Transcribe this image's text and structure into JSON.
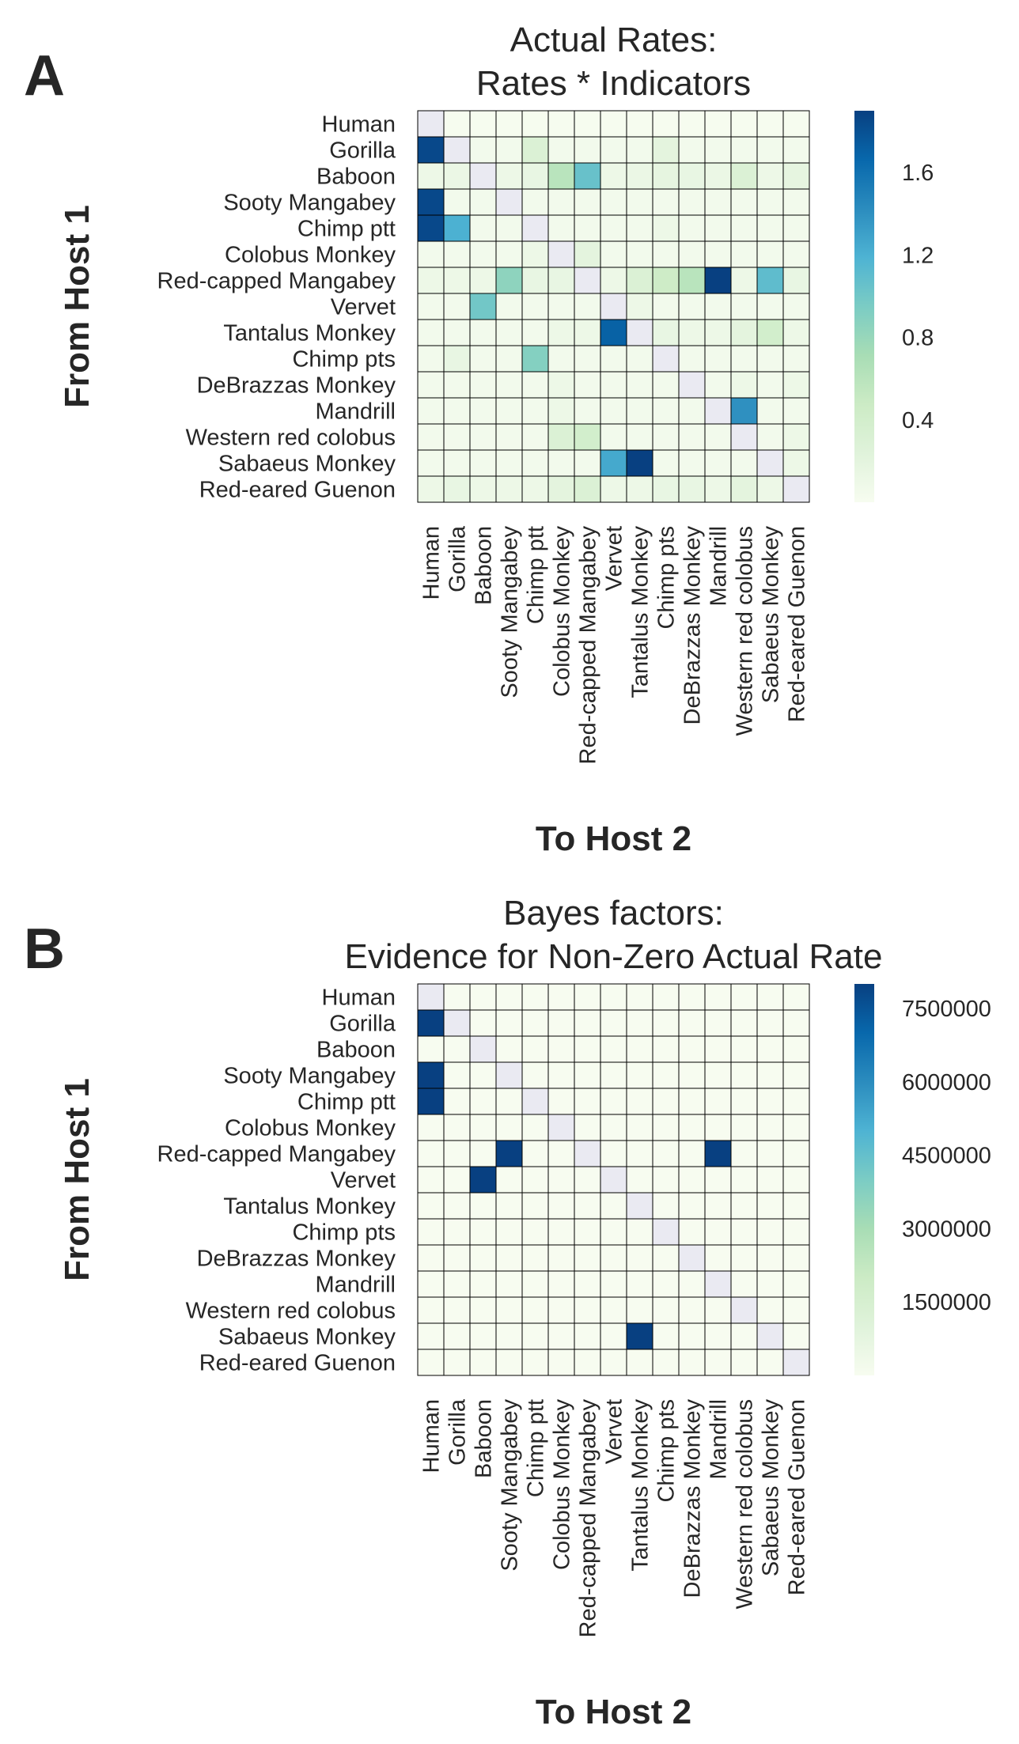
{
  "hosts": [
    "Human",
    "Gorilla",
    "Baboon",
    "Sooty Mangabey",
    "Chimp ptt",
    "Colobus Monkey",
    "Red-capped Mangabey",
    "Vervet",
    "Tantalus Monkey",
    "Chimp pts",
    "DeBrazzas Monkey",
    "Mandrill",
    "Western red colobus",
    "Sabaeus Monkey",
    "Red-eared Guenon"
  ],
  "chart_data": [
    {
      "panel": "A",
      "type": "heatmap",
      "title": "Actual Rates:",
      "subtitle": "Rates * Indicators",
      "xlabel": "To Host 2",
      "ylabel": "From Host 1",
      "colormap": "GnBu",
      "colorbar": {
        "range": [
          0,
          1.9
        ],
        "ticks": [
          0.4,
          0.8,
          1.2,
          1.6
        ],
        "tick_labels": [
          "0.4",
          "0.8",
          "1.2",
          "1.6"
        ]
      },
      "diagonal": "masked",
      "values": [
        [
          null,
          0.01,
          0.01,
          0.01,
          0.01,
          0.01,
          0.01,
          0.01,
          0.01,
          0.01,
          0.01,
          0.01,
          0.01,
          0.01,
          0.01
        ],
        [
          1.85,
          null,
          0.05,
          0.05,
          0.3,
          0.05,
          0.05,
          0.05,
          0.05,
          0.2,
          0.05,
          0.05,
          0.05,
          0.05,
          0.05
        ],
        [
          0.1,
          0.12,
          null,
          0.1,
          0.15,
          0.6,
          1.05,
          0.1,
          0.12,
          0.18,
          0.15,
          0.12,
          0.3,
          0.1,
          0.18
        ],
        [
          1.85,
          0.05,
          0.05,
          null,
          0.05,
          0.05,
          0.05,
          0.05,
          0.05,
          0.05,
          0.05,
          0.05,
          0.05,
          0.05,
          0.05
        ],
        [
          1.85,
          1.2,
          0.05,
          0.05,
          null,
          0.05,
          0.05,
          0.05,
          0.05,
          0.1,
          0.05,
          0.05,
          0.05,
          0.05,
          0.05
        ],
        [
          0.05,
          0.05,
          0.05,
          0.05,
          0.1,
          null,
          0.2,
          0.05,
          0.05,
          0.05,
          0.05,
          0.05,
          0.05,
          0.05,
          0.05
        ],
        [
          0.1,
          0.1,
          0.1,
          0.85,
          0.15,
          0.15,
          null,
          0.1,
          0.3,
          0.45,
          0.6,
          1.9,
          0.1,
          1.1,
          0.15
        ],
        [
          0.05,
          0.05,
          1.0,
          0.05,
          0.05,
          0.05,
          0.05,
          null,
          0.1,
          0.05,
          0.05,
          0.05,
          0.05,
          0.05,
          0.05
        ],
        [
          0.05,
          0.05,
          0.05,
          0.05,
          0.05,
          0.1,
          0.1,
          1.7,
          null,
          0.15,
          0.1,
          0.1,
          0.2,
          0.4,
          0.1
        ],
        [
          0.05,
          0.15,
          0.05,
          0.05,
          0.9,
          0.05,
          0.05,
          0.05,
          0.05,
          null,
          0.05,
          0.05,
          0.05,
          0.05,
          0.05
        ],
        [
          0.05,
          0.05,
          0.05,
          0.05,
          0.05,
          0.1,
          0.05,
          0.05,
          0.05,
          0.05,
          null,
          0.05,
          0.1,
          0.05,
          0.1
        ],
        [
          0.05,
          0.05,
          0.05,
          0.05,
          0.05,
          0.1,
          0.05,
          0.05,
          0.05,
          0.05,
          0.05,
          null,
          1.4,
          0.05,
          0.05
        ],
        [
          0.05,
          0.05,
          0.05,
          0.05,
          0.05,
          0.3,
          0.4,
          0.05,
          0.05,
          0.05,
          0.05,
          0.05,
          null,
          0.05,
          0.1
        ],
        [
          0.05,
          0.05,
          0.05,
          0.05,
          0.05,
          0.05,
          0.05,
          1.25,
          1.9,
          0.05,
          0.05,
          0.05,
          0.05,
          null,
          0.1
        ],
        [
          0.1,
          0.15,
          0.1,
          0.1,
          0.1,
          0.2,
          0.3,
          0.1,
          0.1,
          0.15,
          0.15,
          0.1,
          0.2,
          0.1,
          null
        ]
      ]
    },
    {
      "panel": "B",
      "type": "heatmap",
      "title": "Bayes factors:",
      "subtitle": "Evidence for Non-Zero Actual Rate",
      "xlabel": "To Host 2",
      "ylabel": "From Host 1",
      "colormap": "GnBu",
      "colorbar": {
        "range": [
          0,
          8000000
        ],
        "ticks": [
          1500000,
          3000000,
          4500000,
          6000000,
          7500000
        ],
        "tick_labels": [
          "1500000",
          "3000000",
          "4500000",
          "6000000",
          "7500000"
        ]
      },
      "diagonal": "masked",
      "values": [
        [
          null,
          0,
          0,
          0,
          0,
          0,
          0,
          0,
          0,
          0,
          0,
          0,
          0,
          0,
          0
        ],
        [
          8000000,
          null,
          0,
          0,
          0,
          0,
          0,
          0,
          0,
          0,
          0,
          0,
          0,
          0,
          0
        ],
        [
          0,
          0,
          null,
          0,
          0,
          0,
          0,
          0,
          0,
          0,
          0,
          0,
          0,
          0,
          0
        ],
        [
          8000000,
          0,
          0,
          null,
          0,
          0,
          0,
          0,
          0,
          0,
          0,
          0,
          0,
          0,
          0
        ],
        [
          8000000,
          0,
          0,
          0,
          null,
          0,
          0,
          0,
          0,
          0,
          0,
          0,
          0,
          0,
          0
        ],
        [
          0,
          0,
          0,
          0,
          0,
          null,
          0,
          0,
          0,
          0,
          0,
          0,
          0,
          0,
          0
        ],
        [
          0,
          0,
          0,
          8000000,
          0,
          0,
          null,
          0,
          0,
          0,
          0,
          8000000,
          0,
          0,
          0
        ],
        [
          0,
          0,
          8000000,
          0,
          0,
          0,
          0,
          null,
          0,
          0,
          0,
          0,
          0,
          0,
          0
        ],
        [
          0,
          0,
          0,
          0,
          0,
          0,
          0,
          0,
          null,
          0,
          0,
          0,
          0,
          0,
          0
        ],
        [
          0,
          0,
          0,
          0,
          0,
          0,
          0,
          0,
          0,
          null,
          0,
          0,
          0,
          0,
          0
        ],
        [
          0,
          0,
          0,
          0,
          0,
          0,
          0,
          0,
          0,
          0,
          null,
          0,
          0,
          0,
          0
        ],
        [
          0,
          0,
          0,
          0,
          0,
          0,
          0,
          0,
          0,
          0,
          0,
          null,
          0,
          0,
          0
        ],
        [
          0,
          0,
          0,
          0,
          0,
          0,
          0,
          0,
          0,
          0,
          0,
          0,
          null,
          0,
          0
        ],
        [
          0,
          0,
          0,
          0,
          0,
          0,
          0,
          0,
          8000000,
          0,
          0,
          0,
          0,
          null,
          0
        ],
        [
          0,
          0,
          0,
          0,
          0,
          0,
          0,
          0,
          0,
          0,
          0,
          0,
          0,
          0,
          null
        ]
      ]
    }
  ]
}
